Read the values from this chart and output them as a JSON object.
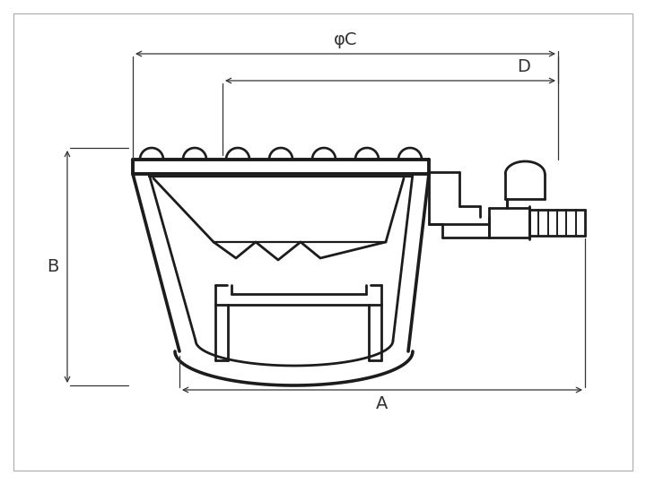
{
  "bg_color": "#ffffff",
  "line_color": "#1c1c1c",
  "dim_color": "#333333",
  "lw_main": 2.0,
  "lw_dim": 0.9,
  "fig_w": 7.2,
  "fig_h": 5.4,
  "label_A": "A",
  "label_B": "B",
  "label_C": "φC",
  "label_D": "D",
  "font_size": 14
}
